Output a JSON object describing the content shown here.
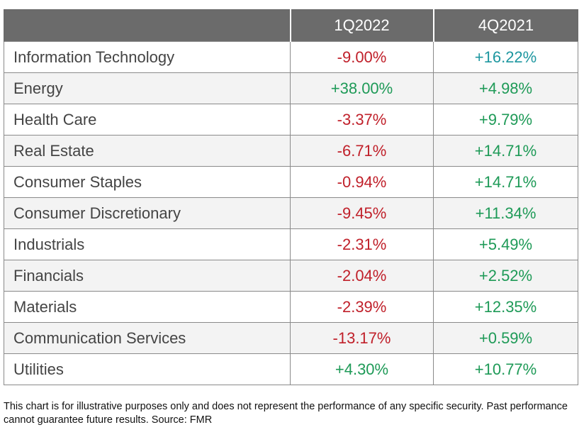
{
  "chart_data": {
    "type": "table",
    "columns": [
      "",
      "1Q2022",
      "4Q2021"
    ],
    "rows": [
      {
        "sector": "Information Technology",
        "q1_2022": "-9.00%",
        "q4_2021": "+16.22%"
      },
      {
        "sector": "Energy",
        "q1_2022": "+38.00%",
        "q4_2021": "+4.98%"
      },
      {
        "sector": "Health Care",
        "q1_2022": "-3.37%",
        "q4_2021": "+9.79%"
      },
      {
        "sector": "Real Estate",
        "q1_2022": "-6.71%",
        "q4_2021": "+14.71%"
      },
      {
        "sector": "Consumer Staples",
        "q1_2022": "-0.94%",
        "q4_2021": "+14.71%"
      },
      {
        "sector": "Consumer Discretionary",
        "q1_2022": "-9.45%",
        "q4_2021": "+11.34%"
      },
      {
        "sector": "Industrials",
        "q1_2022": "-2.31%",
        "q4_2021": "+5.49%"
      },
      {
        "sector": "Financials",
        "q1_2022": "-2.04%",
        "q4_2021": "+2.52%"
      },
      {
        "sector": "Materials",
        "q1_2022": "-2.39%",
        "q4_2021": "+12.35%"
      },
      {
        "sector": "Communication Services",
        "q1_2022": "-13.17%",
        "q4_2021": "+0.59%"
      },
      {
        "sector": "Utilities",
        "q1_2022": "+4.30%",
        "q4_2021": "+10.77%"
      }
    ]
  },
  "colors": {
    "header_bg": "#6b6b6b",
    "negative": "#c0202a",
    "positive": "#1e9a57",
    "positive_alt": "#1e97a0",
    "row_alt_bg": "#f3f3f3"
  },
  "footnote": "This chart is for illustrative purposes only and does not represent the performance of any specific security. Past performance cannot guarantee future results. Source: FMR"
}
